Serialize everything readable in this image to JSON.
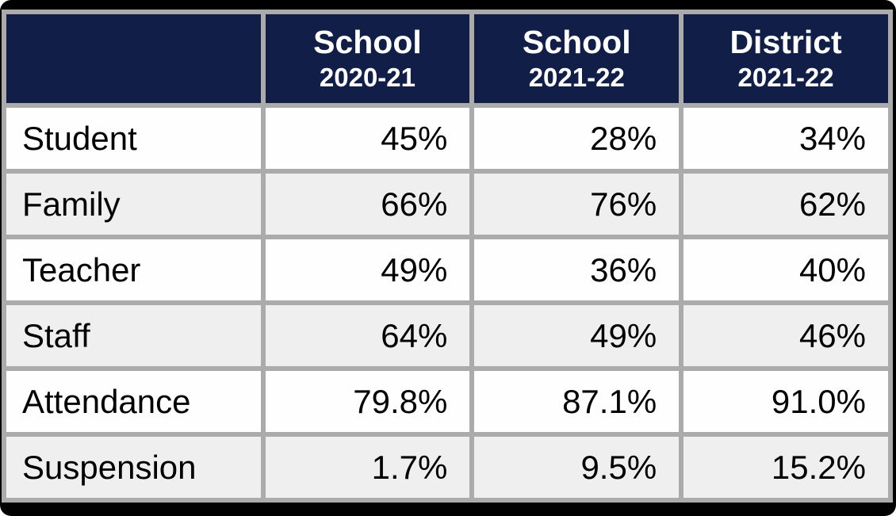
{
  "colors": {
    "frame": "#000000",
    "grid_border": "#ABABAB",
    "header_bg": "#111E48",
    "header_text": "#FFFFFF",
    "row_bg": "#FEFEFE",
    "row_alt_bg": "#EFEFEF",
    "body_text": "#000000"
  },
  "table": {
    "columns": [
      {
        "line1": "",
        "line2": ""
      },
      {
        "line1": "School",
        "line2": "2020-21"
      },
      {
        "line1": "School",
        "line2": "2021-22"
      },
      {
        "line1": "District",
        "line2": "2021-22"
      }
    ],
    "rows": [
      {
        "label": "Student",
        "values": [
          "45%",
          "28%",
          "34%"
        ]
      },
      {
        "label": "Family",
        "values": [
          "66%",
          "76%",
          "62%"
        ]
      },
      {
        "label": "Teacher",
        "values": [
          "49%",
          "36%",
          "40%"
        ]
      },
      {
        "label": "Staff",
        "values": [
          "64%",
          "49%",
          "46%"
        ]
      },
      {
        "label": "Attendance",
        "values": [
          "79.8%",
          "87.1%",
          "91.0%"
        ]
      },
      {
        "label": "Suspension",
        "values": [
          "1.7%",
          "9.5%",
          "15.2%"
        ]
      }
    ]
  },
  "chart_data": {
    "type": "table",
    "title": "",
    "columns": [
      "",
      "School 2020-21",
      "School 2021-22",
      "District 2021-22"
    ],
    "rows": [
      [
        "Student",
        "45%",
        "28%",
        "34%"
      ],
      [
        "Family",
        "66%",
        "76%",
        "62%"
      ],
      [
        "Teacher",
        "49%",
        "36%",
        "40%"
      ],
      [
        "Staff",
        "64%",
        "49%",
        "46%"
      ],
      [
        "Attendance",
        "79.8%",
        "87.1%",
        "91.0%"
      ],
      [
        "Suspension",
        "1.7%",
        "9.5%",
        "15.2%"
      ]
    ]
  }
}
